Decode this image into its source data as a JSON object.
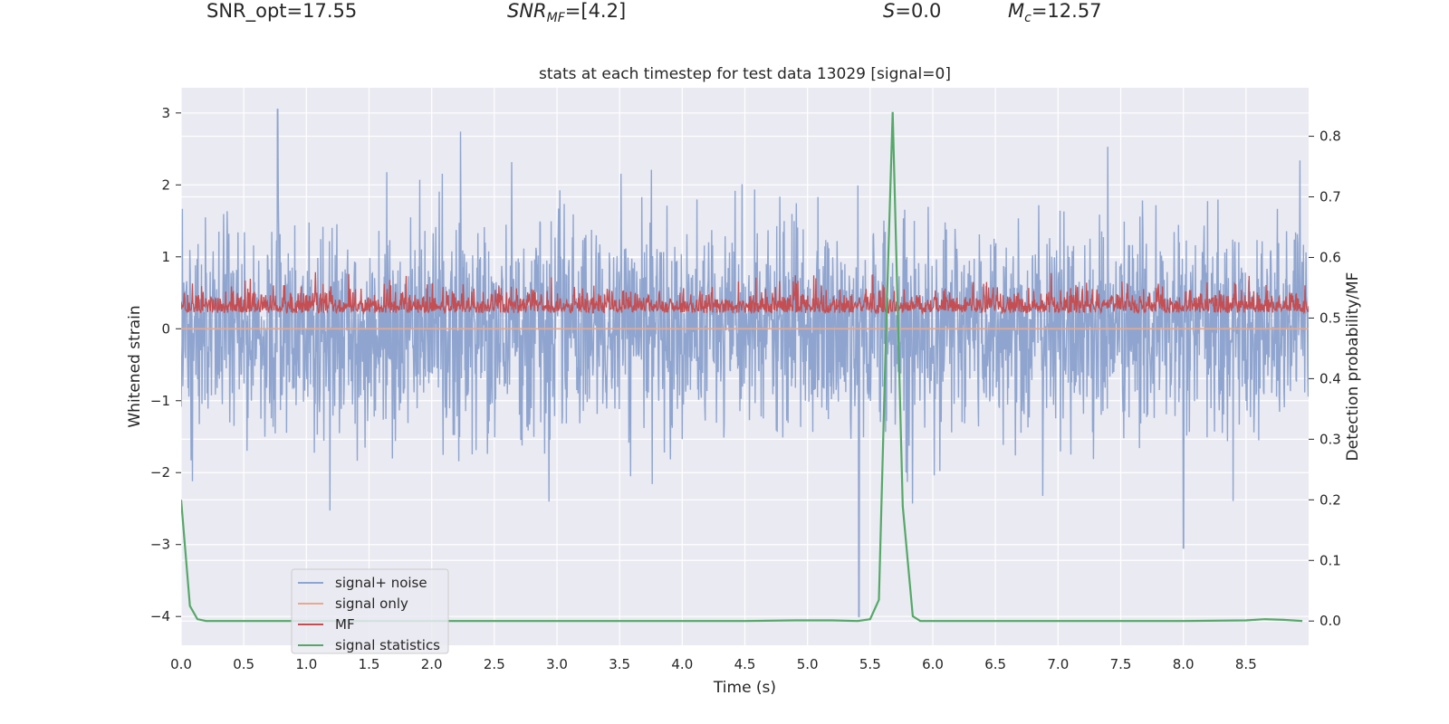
{
  "header": {
    "snr_opt": "SNR_opt=17.55",
    "snr_mf_main": "SNR",
    "snr_mf_sub": "MF",
    "snr_mf_value": "=[4.2]",
    "s_symbol": "S",
    "s_value": "=0.0",
    "mc_symbol": "M",
    "mc_sub": "c",
    "mc_value": "=12.57"
  },
  "chart_data": {
    "type": "line",
    "title": "stats at each timestep for test data 13029 [signal=0]",
    "xlabel": "Time (s)",
    "ylabel": "Whitened strain",
    "y2label": "Detection probability/MF",
    "xlim": [
      0,
      9.0
    ],
    "ylim": [
      -4.4,
      3.35
    ],
    "y2lim": [
      -0.04,
      0.88
    ],
    "xticks": [
      "0.0",
      "0.5",
      "1.0",
      "1.5",
      "2.0",
      "2.5",
      "3.0",
      "3.5",
      "4.0",
      "4.5",
      "5.0",
      "5.5",
      "6.0",
      "6.5",
      "7.0",
      "7.5",
      "8.0",
      "8.5"
    ],
    "yticks": [
      "−4",
      "−3",
      "−2",
      "−1",
      "0",
      "1",
      "2",
      "3"
    ],
    "y2ticks": [
      "0.0",
      "0.1",
      "0.2",
      "0.3",
      "0.4",
      "0.5",
      "0.6",
      "0.7",
      "0.8"
    ],
    "grid": true,
    "legend_position": "lower-left",
    "colors": {
      "noise": "#8fa5cf",
      "signal_only": "#e8a98d",
      "mf": "#c44e52",
      "statistics": "#55a868",
      "background": "#eaeaf2",
      "grid": "#ffffff"
    },
    "series": [
      {
        "name": "signal+ noise",
        "description": "whitened strain, dense noise between about -2.5 and 2.5 with spikes to 3.05 and -4.0"
      },
      {
        "name": "signal only",
        "x": [
          0,
          9.0
        ],
        "y": [
          0,
          0
        ]
      },
      {
        "name": "MF",
        "description": "matched filter output between about 0.0 and 1.0 (right axis ~0.5 to 0.6)"
      },
      {
        "name": "signal statistics",
        "axis": "right",
        "x": [
          0.0,
          0.07,
          0.13,
          0.2,
          0.3,
          1.0,
          2.0,
          3.0,
          4.0,
          4.5,
          4.9,
          5.2,
          5.4,
          5.5,
          5.57,
          5.63,
          5.68,
          5.76,
          5.84,
          5.9,
          6.0,
          7.0,
          8.0,
          8.5,
          8.65,
          8.8,
          8.95
        ],
        "y": [
          0.2,
          0.025,
          0.003,
          0.0,
          0.0,
          0.0,
          0.0,
          0.0,
          0.0,
          0.0,
          0.001,
          0.001,
          0.0,
          0.003,
          0.035,
          0.5,
          0.84,
          0.19,
          0.008,
          0.0,
          0.0,
          0.0,
          0.0,
          0.001,
          0.003,
          0.002,
          0.0
        ]
      }
    ]
  }
}
